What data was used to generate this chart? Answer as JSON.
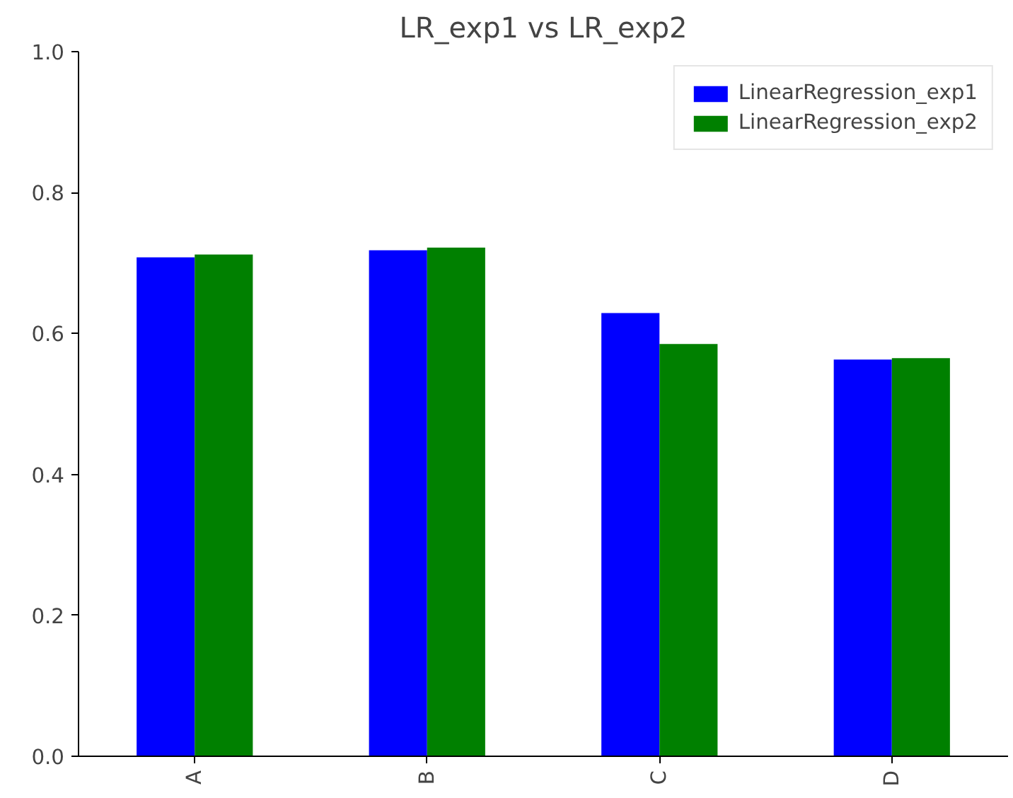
{
  "chart_data": {
    "type": "bar",
    "title": "LR_exp1 vs LR_exp2",
    "categories": [
      "A",
      "B",
      "C",
      "D"
    ],
    "series": [
      {
        "name": "LinearRegression_exp1",
        "color": "#0000ff",
        "values": [
          0.708,
          0.718,
          0.629,
          0.563
        ]
      },
      {
        "name": "LinearRegression_exp2",
        "color": "#008000",
        "values": [
          0.712,
          0.722,
          0.585,
          0.565
        ]
      }
    ],
    "ylim": [
      0,
      1.0
    ],
    "yticks": [
      {
        "value": 0,
        "label": "0.0"
      },
      {
        "value": 0.2,
        "label": "0.2"
      },
      {
        "value": 0.4,
        "label": "0.4"
      },
      {
        "value": 0.6,
        "label": "0.6"
      },
      {
        "value": 0.8,
        "label": "0.8"
      },
      {
        "value": 1.0,
        "label": "1.0"
      }
    ],
    "grid": false,
    "legend": "top right"
  }
}
